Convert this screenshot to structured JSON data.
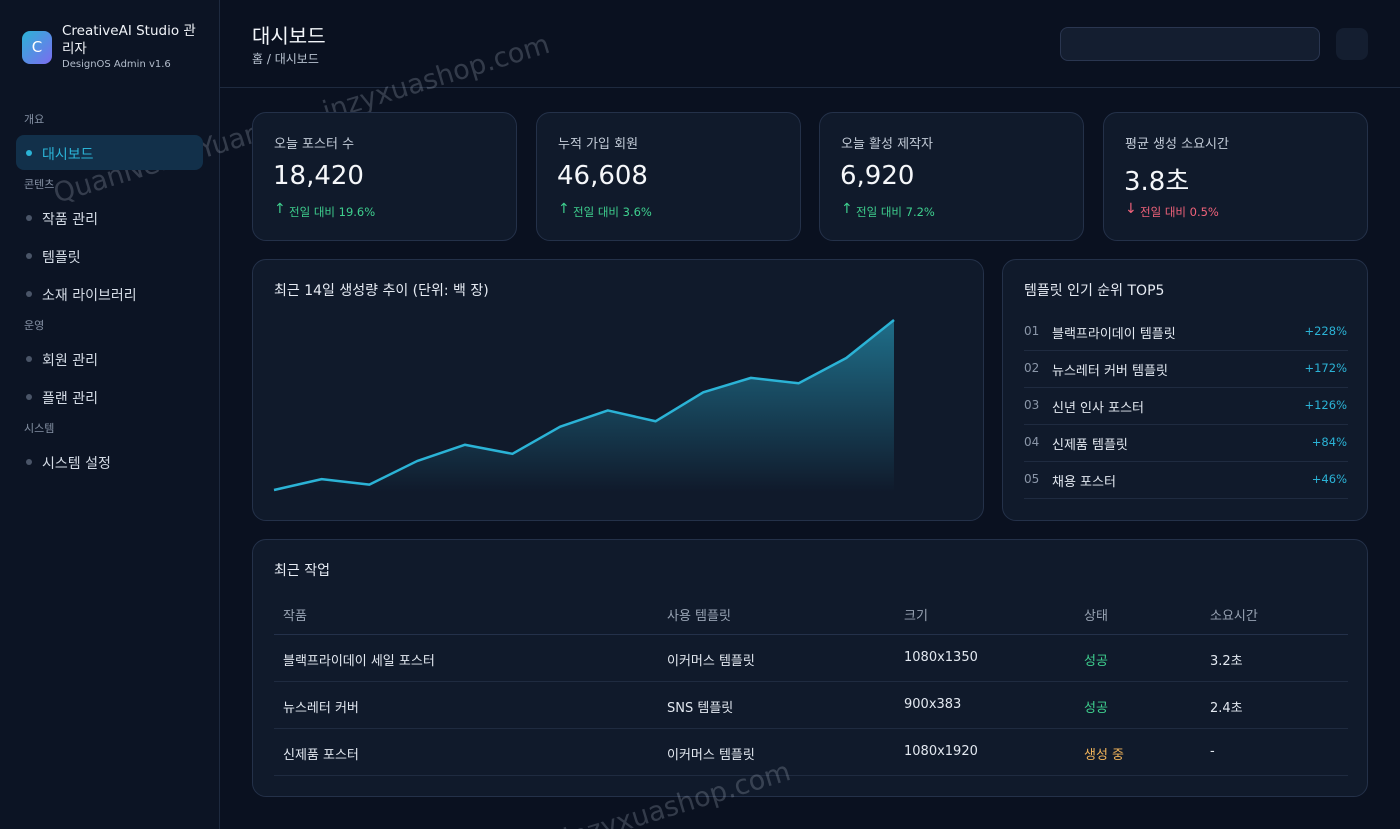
{
  "sidebar": {
    "logo": "C",
    "name": "CreativeAI Studio 관리자",
    "version": "DesignOS Admin v1.6",
    "groups": [
      {
        "label": "개요",
        "items": [
          "대시보드"
        ]
      },
      {
        "label": "콘텐츠",
        "items": [
          "작품 관리",
          "템플릿",
          "소재 라이브러리"
        ]
      },
      {
        "label": "운영",
        "items": [
          "회원 관리",
          "플랜 관리"
        ]
      },
      {
        "label": "시스템",
        "items": [
          "시스템 설정"
        ]
      }
    ]
  },
  "header": {
    "title": "대시보드",
    "breadcrumb": "홈 / 대시보드"
  },
  "stats": [
    {
      "label": "오늘 포스터 수",
      "value": "18,420",
      "change": "전일 대비 19.6%",
      "direction": "up"
    },
    {
      "label": "누적 가입 회원",
      "value": "46,608",
      "change": "전일 대비 3.6%",
      "direction": "up"
    },
    {
      "label": "오늘 활성 제작자",
      "value": "6,920",
      "change": "전일 대비 7.2%",
      "direction": "up"
    },
    {
      "label": "평균 생성 소요시간",
      "value": "3.8초",
      "change": "전일 대비 0.5%",
      "direction": "down"
    }
  ],
  "chart_data": {
    "type": "area",
    "title": "최근 14일 생성량 추이 (단위: 백 장)",
    "values": [
      12,
      18,
      15,
      28,
      37,
      32,
      47,
      56,
      50,
      66,
      74,
      71,
      85,
      106
    ],
    "color": "#2bb3d6"
  },
  "ranking": {
    "title": "템플릿 인기 순위 TOP5",
    "items": [
      {
        "rank": "01",
        "name": "블랙프라이데이 템플릿",
        "change": "+228%"
      },
      {
        "rank": "02",
        "name": "뉴스레터 커버 템플릿",
        "change": "+172%"
      },
      {
        "rank": "03",
        "name": "신년 인사 포스터",
        "change": "+126%"
      },
      {
        "rank": "04",
        "name": "신제품 템플릿",
        "change": "+84%"
      },
      {
        "rank": "05",
        "name": "채용 포스터",
        "change": "+46%"
      }
    ]
  },
  "table": {
    "title": "최근 작업",
    "columns": [
      "작품",
      "사용 템플릿",
      "크기",
      "상태",
      "소요시간"
    ],
    "rows": [
      {
        "cells": [
          "블랙프라이데이 세일 포스터",
          "이커머스 템플릿",
          "1080x1350",
          "성공",
          "3.2초"
        ],
        "state": "success"
      },
      {
        "cells": [
          "뉴스레터 커버",
          "SNS 템플릿",
          "900x383",
          "성공",
          "2.4초"
        ],
        "state": "success"
      },
      {
        "cells": [
          "신제품 포스터",
          "이커머스 템플릿",
          "1080x1920",
          "생성 중",
          "-"
        ],
        "state": "pending"
      }
    ]
  },
  "watermark": [
    "QuanNeng YuanMa · inzyxuashop.com",
    "inzyxuashop.com"
  ]
}
